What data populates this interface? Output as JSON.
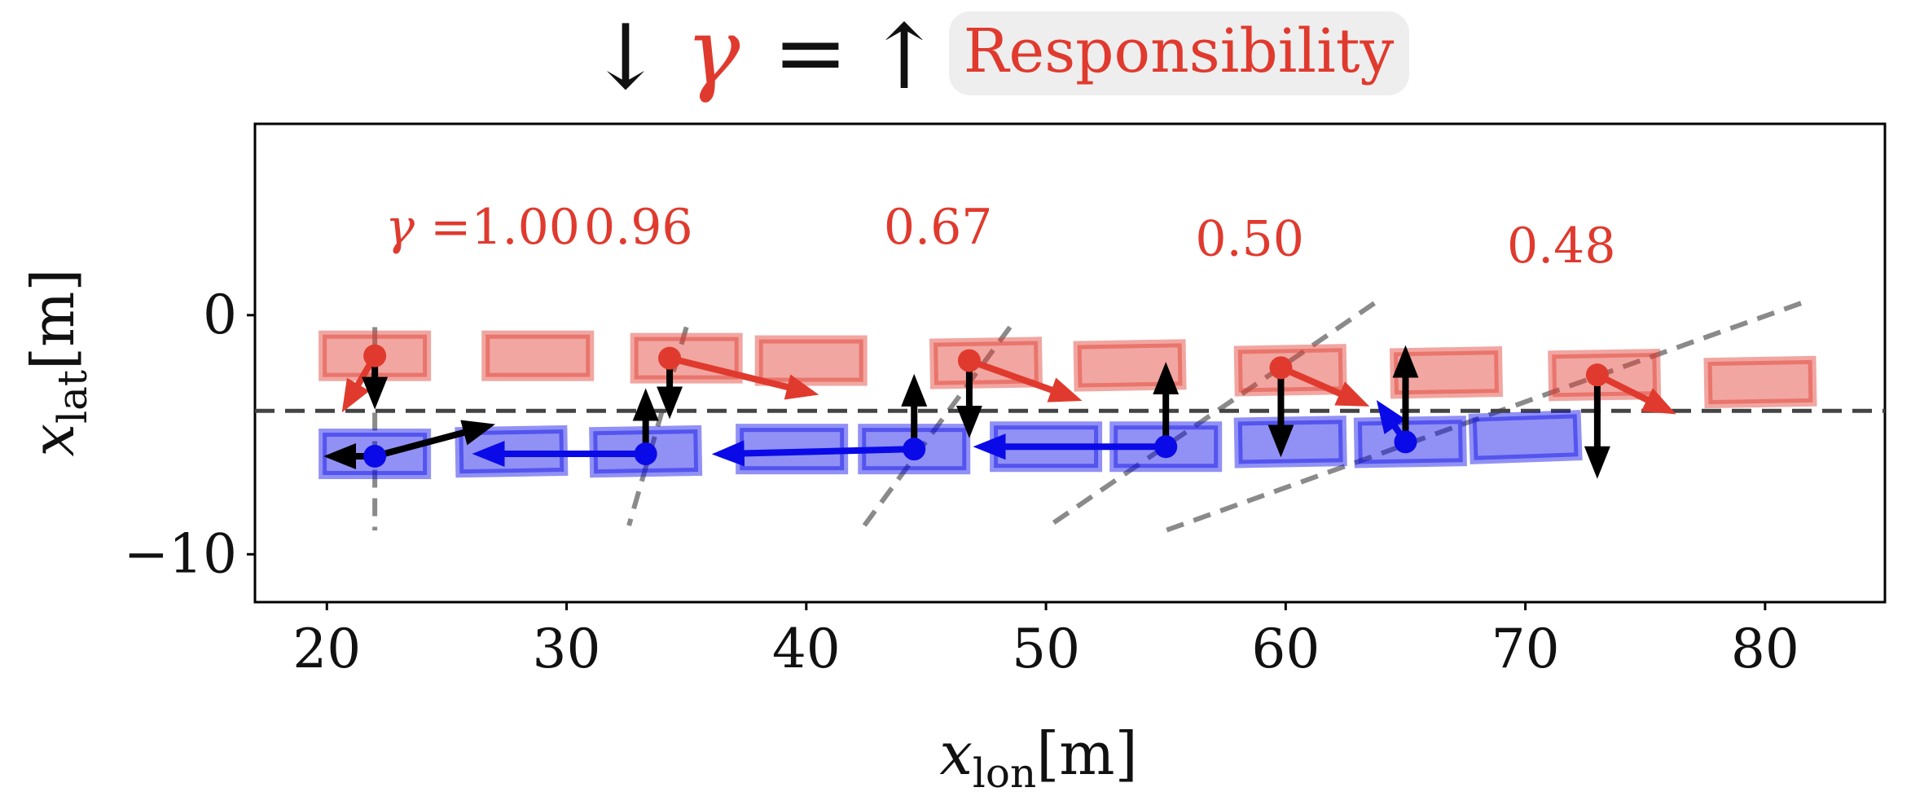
{
  "chart_data": {
    "type": "scatter",
    "title": {
      "arrow_down": "↓",
      "symbol": "γ",
      "equals": "=",
      "arrow_up": "↑",
      "badge": "Responsibility"
    },
    "xlabel": {
      "base": "x",
      "sub": "lon",
      "unit": "[m]"
    },
    "ylabel": {
      "base": "x",
      "sub": "lat",
      "unit": "[m]"
    },
    "xlim": [
      17,
      85
    ],
    "ylim": [
      -12,
      8
    ],
    "xticks": [
      20,
      30,
      40,
      50,
      60,
      70,
      80
    ],
    "yticks": [
      0,
      -10
    ],
    "ytick_labels": [
      "0",
      "−10"
    ],
    "lane_boundary_y": -4,
    "colors": {
      "red": "#e03a2e",
      "blue": "#0a0ae8",
      "black": "#000000",
      "gray": "#8a8a8a",
      "badge_bg": "#eeeeee"
    },
    "gamma_prefix": "γ =",
    "gammas": [
      "1.00",
      "0.96",
      "0.67",
      "0.50",
      "0.48"
    ],
    "gamma_label_pos": [
      [
        26.5,
        3.0
      ],
      [
        33.0,
        3.0
      ],
      [
        45.5,
        3.0
      ],
      [
        58.5,
        2.5
      ],
      [
        71.5,
        2.2
      ]
    ],
    "red_vehicles": [
      {
        "x": 22.0,
        "y": -1.7,
        "angle": 0
      },
      {
        "x": 28.8,
        "y": -1.7,
        "angle": 0
      },
      {
        "x": 35.0,
        "y": -1.8,
        "angle": 0
      },
      {
        "x": 40.2,
        "y": -1.9,
        "angle": 0
      },
      {
        "x": 47.5,
        "y": -2.0,
        "angle": -1
      },
      {
        "x": 53.5,
        "y": -2.1,
        "angle": -1
      },
      {
        "x": 60.2,
        "y": -2.3,
        "angle": -1
      },
      {
        "x": 66.7,
        "y": -2.4,
        "angle": -1
      },
      {
        "x": 73.3,
        "y": -2.5,
        "angle": -1
      },
      {
        "x": 79.8,
        "y": -2.8,
        "angle": -1
      }
    ],
    "blue_vehicles": [
      {
        "x": 22.0,
        "y": -5.8,
        "angle": 0
      },
      {
        "x": 27.7,
        "y": -5.7,
        "angle": -1
      },
      {
        "x": 33.3,
        "y": -5.7,
        "angle": -1
      },
      {
        "x": 39.4,
        "y": -5.6,
        "angle": 0
      },
      {
        "x": 44.5,
        "y": -5.6,
        "angle": 0
      },
      {
        "x": 50.0,
        "y": -5.5,
        "angle": 0
      },
      {
        "x": 55.0,
        "y": -5.5,
        "angle": 0
      },
      {
        "x": 60.2,
        "y": -5.3,
        "angle": -1
      },
      {
        "x": 65.2,
        "y": -5.3,
        "angle": -1
      },
      {
        "x": 70.0,
        "y": -5.1,
        "angle": -2
      }
    ],
    "red_points": [
      [
        22.0,
        -1.7
      ],
      [
        34.3,
        -1.8
      ],
      [
        46.8,
        -1.9
      ],
      [
        59.8,
        -2.2
      ],
      [
        73.0,
        -2.5
      ]
    ],
    "blue_points": [
      [
        22.0,
        -5.9
      ],
      [
        33.3,
        -5.8
      ],
      [
        44.5,
        -5.6
      ],
      [
        55.0,
        -5.5
      ],
      [
        65.0,
        -5.3
      ]
    ],
    "red_arrows": [
      [
        [
          22.0,
          -1.7
        ],
        [
          20.9,
          -3.6
        ]
      ],
      [
        [
          34.3,
          -1.8
        ],
        [
          40.0,
          -3.2
        ]
      ],
      [
        [
          46.8,
          -1.9
        ],
        [
          51.0,
          -3.4
        ]
      ],
      [
        [
          59.8,
          -2.2
        ],
        [
          63.0,
          -3.6
        ]
      ],
      [
        [
          73.0,
          -2.5
        ],
        [
          75.8,
          -3.9
        ]
      ]
    ],
    "blue_arrows": [
      [
        [
          33.3,
          -5.8
        ],
        [
          26.6,
          -5.8
        ]
      ],
      [
        [
          44.5,
          -5.6
        ],
        [
          36.6,
          -5.8
        ]
      ],
      [
        [
          55.0,
          -5.5
        ],
        [
          47.5,
          -5.5
        ]
      ],
      [
        [
          65.0,
          -5.3
        ],
        [
          64.1,
          -4.0
        ]
      ]
    ],
    "black_arrows": [
      [
        [
          22.0,
          -5.9
        ],
        [
          26.5,
          -4.7
        ]
      ],
      [
        [
          22.0,
          -5.9
        ],
        [
          20.4,
          -5.9
        ]
      ],
      [
        [
          22.0,
          -1.7
        ],
        [
          22.0,
          -3.4
        ]
      ],
      [
        [
          34.3,
          -1.8
        ],
        [
          34.3,
          -3.8
        ]
      ],
      [
        [
          33.3,
          -5.8
        ],
        [
          33.3,
          -3.6
        ]
      ],
      [
        [
          44.5,
          -5.6
        ],
        [
          44.5,
          -3.0
        ]
      ],
      [
        [
          46.8,
          -1.9
        ],
        [
          46.8,
          -4.6
        ]
      ],
      [
        [
          55.0,
          -5.5
        ],
        [
          55.0,
          -2.5
        ]
      ],
      [
        [
          59.8,
          -2.2
        ],
        [
          59.8,
          -5.4
        ]
      ],
      [
        [
          65.0,
          -5.3
        ],
        [
          65.0,
          -1.8
        ]
      ],
      [
        [
          73.0,
          -2.5
        ],
        [
          73.0,
          -6.3
        ]
      ]
    ],
    "dashed_lines": [
      [
        [
          22.0,
          -0.5
        ],
        [
          22.0,
          -9.0
        ]
      ],
      [
        [
          35.0,
          -0.5
        ],
        [
          32.6,
          -8.8
        ]
      ],
      [
        [
          48.5,
          -0.5
        ],
        [
          42.2,
          -9.1
        ]
      ],
      [
        [
          63.7,
          0.5
        ],
        [
          50.0,
          -8.9
        ]
      ],
      [
        [
          81.5,
          0.5
        ],
        [
          55.0,
          -9.0
        ]
      ]
    ]
  }
}
